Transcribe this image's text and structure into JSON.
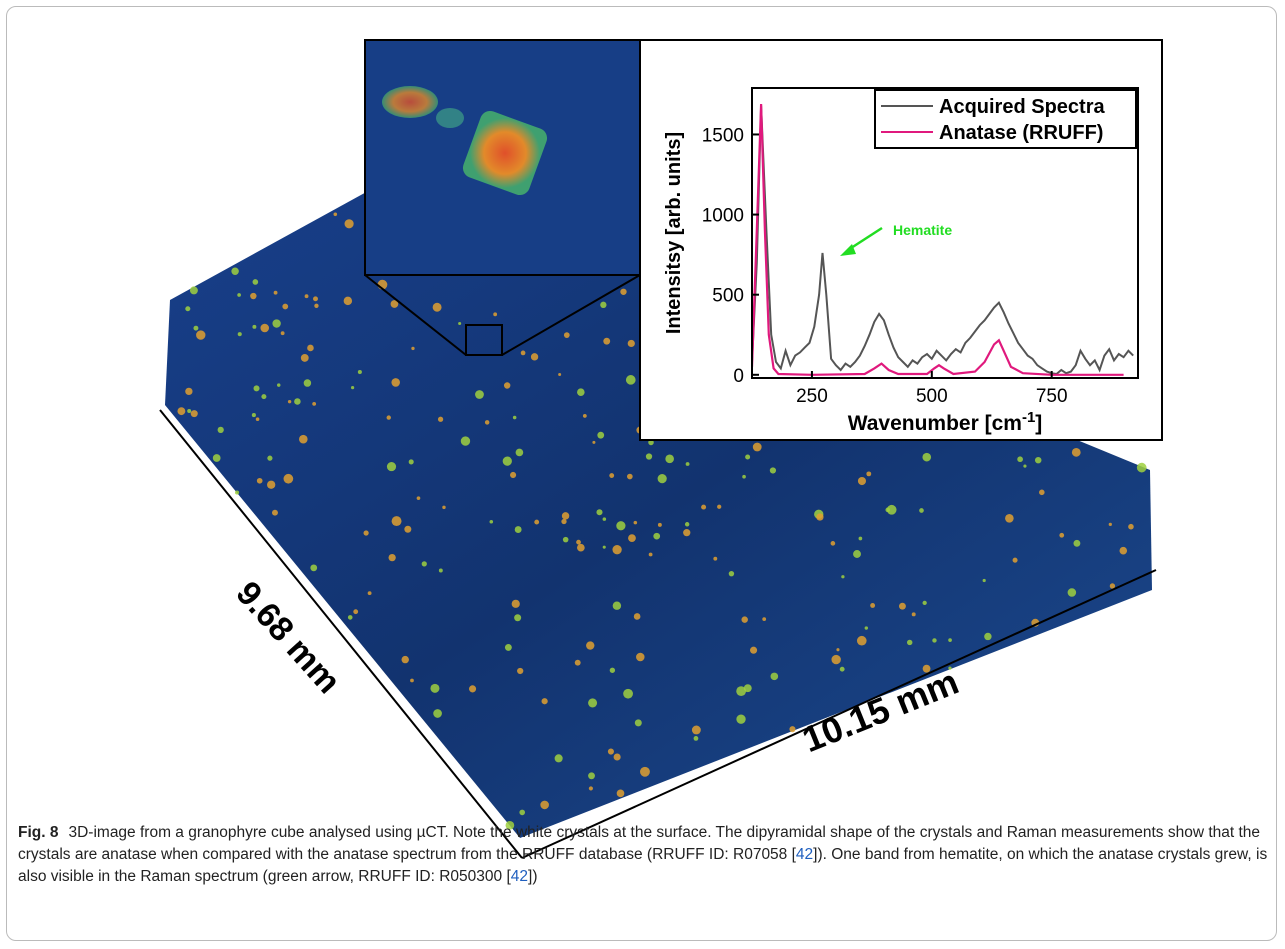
{
  "figure": {
    "label": "Fig. 8",
    "dimensions": [
      "9.68 mm",
      "10.15 mm"
    ],
    "caption": [
      {
        "text": "3D-image from a granophyre cube analysed using µCT. Note the white crystals at the surface. The dipyramidal shape of the crystals and Raman measurements show that the crystals are anatase when compared with the anatase spectrum from the RRUFF database (RRUFF ID: R07058 ["
      },
      {
        "ref": "42"
      },
      {
        "text": "]). One band from hematite, on which the anatase crystals grew, is also visible in the Raman spectrum (green arrow, RRUFF ID: R050300 ["
      },
      {
        "ref": "42"
      },
      {
        "text": "])"
      }
    ]
  },
  "chart_data": {
    "type": "line",
    "y_label": "Intensitsy [arb. units]",
    "x_label": {
      "text": "Wavenumber [cm",
      "superscript": "-1",
      "suffix": "]"
    },
    "annotation": "Hematite",
    "xlim": [
      125,
      930
    ],
    "ylim": [
      -20,
      1790
    ],
    "xticks": [
      250,
      500,
      750
    ],
    "yticks": [
      0,
      500,
      1000,
      1500
    ],
    "legend": "upper right",
    "series": [
      {
        "name": "Acquired Spectra",
        "color": "#555555",
        "x": [
          125,
          135,
          144,
          155,
          165,
          175,
          185,
          195,
          205,
          215,
          225,
          235,
          245,
          255,
          265,
          272,
          280,
          290,
          300,
          310,
          320,
          330,
          340,
          350,
          360,
          370,
          380,
          390,
          400,
          410,
          420,
          430,
          440,
          450,
          460,
          470,
          480,
          490,
          500,
          510,
          520,
          530,
          540,
          550,
          560,
          570,
          580,
          590,
          600,
          610,
          620,
          630,
          640,
          650,
          660,
          670,
          680,
          690,
          700,
          710,
          720,
          730,
          740,
          750,
          760,
          770,
          780,
          790,
          800,
          810,
          820,
          830,
          840,
          850,
          860,
          870,
          880,
          890,
          900,
          910,
          920
        ],
        "values": [
          80,
          700,
          1680,
          900,
          250,
          80,
          40,
          150,
          60,
          120,
          140,
          170,
          200,
          300,
          500,
          760,
          500,
          100,
          60,
          30,
          70,
          50,
          80,
          120,
          180,
          250,
          330,
          380,
          340,
          250,
          170,
          110,
          80,
          50,
          90,
          70,
          110,
          130,
          100,
          150,
          120,
          90,
          130,
          160,
          140,
          200,
          230,
          270,
          310,
          340,
          380,
          420,
          450,
          390,
          320,
          260,
          200,
          160,
          120,
          100,
          60,
          40,
          20,
          10,
          5,
          30,
          10,
          20,
          60,
          150,
          100,
          60,
          90,
          30,
          120,
          160,
          90,
          130,
          110,
          150,
          120
        ]
      },
      {
        "name": "Anatase (RRUFF)",
        "color": "#e0197d",
        "x": [
          125,
          135,
          144,
          152,
          160,
          170,
          180,
          250,
          360,
          380,
          395,
          410,
          430,
          490,
          505,
          515,
          525,
          545,
          590,
          610,
          630,
          640,
          650,
          665,
          690,
          750,
          900
        ],
        "values": [
          50,
          900,
          1690,
          900,
          250,
          40,
          5,
          0,
          5,
          40,
          70,
          30,
          5,
          5,
          40,
          60,
          40,
          5,
          20,
          80,
          190,
          215,
          150,
          50,
          10,
          0,
          0
        ]
      }
    ]
  }
}
